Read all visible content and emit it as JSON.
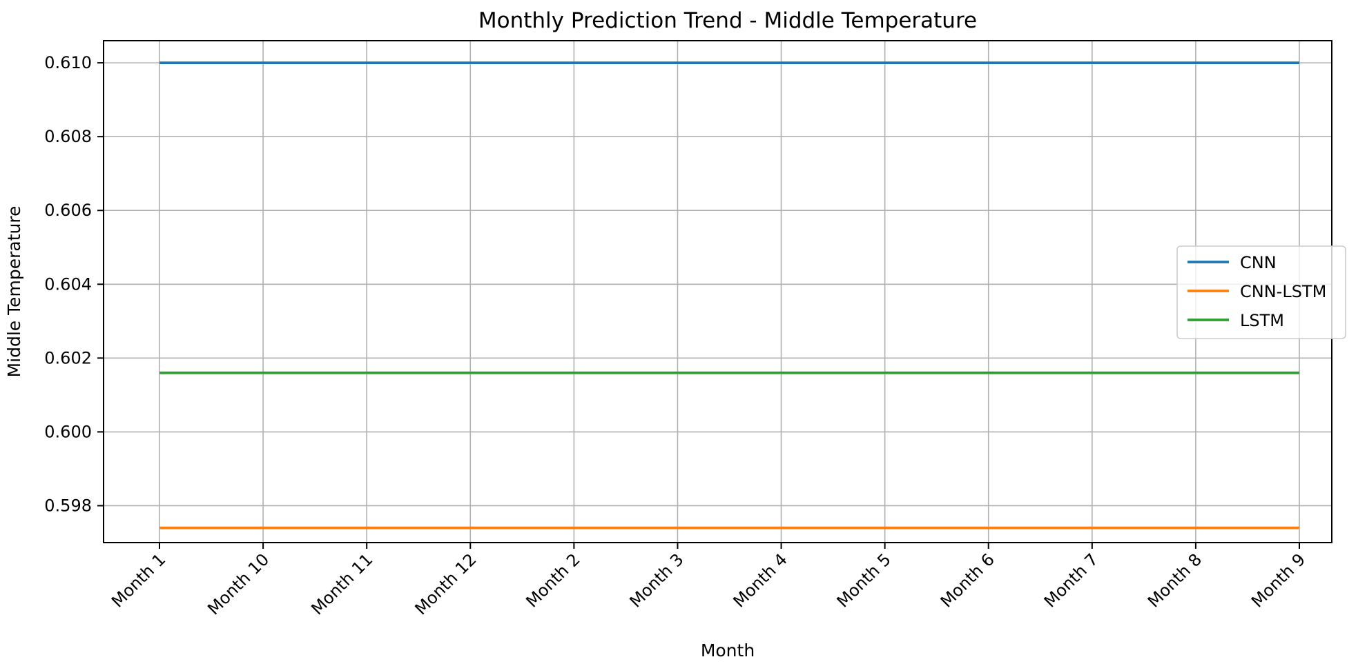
{
  "chart_data": {
    "type": "line",
    "title": "Monthly Prediction Trend - Middle Temperature",
    "xlabel": "Month",
    "ylabel": "Middle Temperature",
    "categories": [
      "Month 1",
      "Month 10",
      "Month 11",
      "Month 12",
      "Month 2",
      "Month 3",
      "Month 4",
      "Month 5",
      "Month 6",
      "Month 7",
      "Month 8",
      "Month 9"
    ],
    "yticks": [
      0.598,
      0.6,
      0.602,
      0.604,
      0.606,
      0.608,
      0.61
    ],
    "ylim": [
      0.597,
      0.6106
    ],
    "grid": true,
    "legend_position": "center-right",
    "series": [
      {
        "name": "CNN",
        "color": "#1f77b4",
        "values": [
          0.61,
          0.61,
          0.61,
          0.61,
          0.61,
          0.61,
          0.61,
          0.61,
          0.61,
          0.61,
          0.61,
          0.61
        ]
      },
      {
        "name": "CNN-LSTM",
        "color": "#ff7f0e",
        "values": [
          0.5974,
          0.5974,
          0.5974,
          0.5974,
          0.5974,
          0.5974,
          0.5974,
          0.5974,
          0.5974,
          0.5974,
          0.5974,
          0.5974
        ]
      },
      {
        "name": "LSTM",
        "color": "#2ca02c",
        "values": [
          0.6016,
          0.6016,
          0.6016,
          0.6016,
          0.6016,
          0.6016,
          0.6016,
          0.6016,
          0.6016,
          0.6016,
          0.6016,
          0.6016
        ]
      }
    ]
  }
}
